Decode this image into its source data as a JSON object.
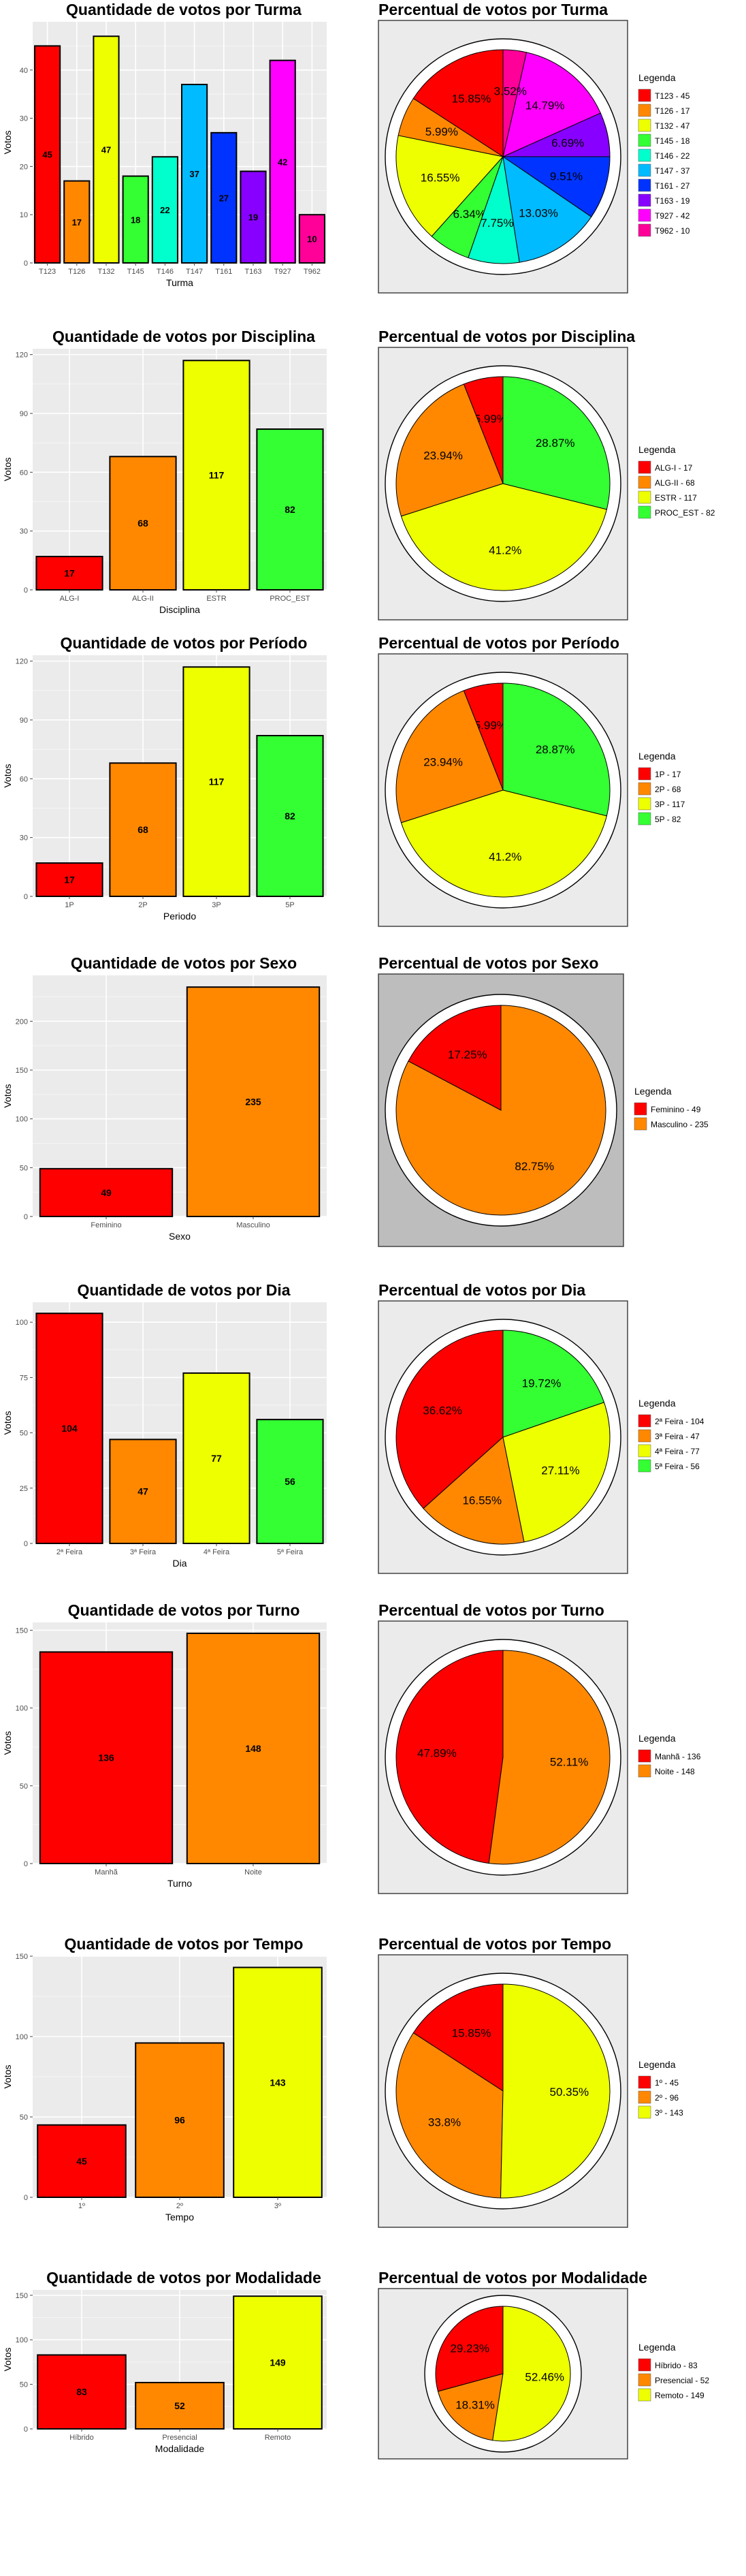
{
  "chart_data": [
    {
      "type": "bar",
      "title": "Quantidade de votos por Turma",
      "xlabel": "Turma",
      "ylabel": "Votos",
      "categories": [
        "T123",
        "T126",
        "T132",
        "T145",
        "T146",
        "T147",
        "T161",
        "T163",
        "T927",
        "T962"
      ],
      "values": [
        45,
        17,
        47,
        18,
        22,
        37,
        27,
        19,
        42,
        10
      ],
      "colors": [
        "#ff0000",
        "#ff8800",
        "#eeff00",
        "#33ff33",
        "#00ffcc",
        "#00bbff",
        "#0033ff",
        "#8800ff",
        "#ff00ff",
        "#ff0099"
      ],
      "ylim": [
        0,
        50
      ],
      "yticks": [
        0,
        10,
        20,
        30,
        40
      ],
      "grid": true
    },
    {
      "type": "pie",
      "title": "Percentual de votos por Turma",
      "legend_title": "Legenda",
      "legend": [
        "T123 - 45",
        "T126 - 17",
        "T132 - 47",
        "T145 - 18",
        "T146 - 22",
        "T147 - 37",
        "T161 - 27",
        "T163 - 19",
        "T927 - 42",
        "T962 - 10"
      ],
      "values": [
        45,
        17,
        47,
        18,
        22,
        37,
        27,
        19,
        42,
        10
      ],
      "labels": [
        "15.85%",
        "5.99%",
        "16.55%",
        "6.34%",
        "7.75%",
        "13.03%",
        "9.51%",
        "6.69%",
        "14.79%",
        "3.52%"
      ],
      "colors": [
        "#ff0000",
        "#ff8800",
        "#eeff00",
        "#33ff33",
        "#00ffcc",
        "#00bbff",
        "#0033ff",
        "#8800ff",
        "#ff00ff",
        "#ff0099"
      ],
      "legend_placement": "right"
    },
    {
      "type": "bar",
      "title": "Quantidade de votos por Disciplina",
      "xlabel": "Disciplina",
      "ylabel": "Votos",
      "categories": [
        "ALG-I",
        "ALG-II",
        "ESTR",
        "PROC_EST"
      ],
      "values": [
        17,
        68,
        117,
        82
      ],
      "colors": [
        "#ff0000",
        "#ff8800",
        "#eeff00",
        "#33ff33"
      ],
      "ylim": [
        0,
        123
      ],
      "yticks": [
        0,
        30,
        60,
        90,
        120
      ],
      "grid": true
    },
    {
      "type": "pie",
      "title": "Percentual de votos por Disciplina",
      "legend_title": "Legenda",
      "legend": [
        "ALG-I - 17",
        "ALG-II - 68",
        "ESTR - 117",
        "PROC_EST - 82"
      ],
      "values": [
        17,
        68,
        117,
        82
      ],
      "labels": [
        "5.99%",
        "23.94%",
        "41.2%",
        "28.87%"
      ],
      "colors": [
        "#ff0000",
        "#ff8800",
        "#eeff00",
        "#33ff33"
      ],
      "legend_placement": "right"
    },
    {
      "type": "bar",
      "title": "Quantidade de votos por Período",
      "xlabel": "Periodo",
      "ylabel": "Votos",
      "categories": [
        "1P",
        "2P",
        "3P",
        "5P"
      ],
      "values": [
        17,
        68,
        117,
        82
      ],
      "colors": [
        "#ff0000",
        "#ff8800",
        "#eeff00",
        "#33ff33"
      ],
      "ylim": [
        0,
        123
      ],
      "yticks": [
        0,
        30,
        60,
        90,
        120
      ],
      "grid": true
    },
    {
      "type": "pie",
      "title": "Percentual de votos por Período",
      "legend_title": "Legenda",
      "legend": [
        "1P - 17",
        "2P - 68",
        "3P - 117",
        "5P - 82"
      ],
      "values": [
        17,
        68,
        117,
        82
      ],
      "labels": [
        "5.99%",
        "23.94%",
        "41.2%",
        "28.87%"
      ],
      "colors": [
        "#ff0000",
        "#ff8800",
        "#eeff00",
        "#33ff33"
      ],
      "legend_placement": "right"
    },
    {
      "type": "bar",
      "title": "Quantidade de votos por Sexo",
      "xlabel": "Sexo",
      "ylabel": "Votos",
      "categories": [
        "Feminino",
        "Masculino"
      ],
      "values": [
        49,
        235
      ],
      "colors": [
        "#ff0000",
        "#ff8800"
      ],
      "ylim": [
        0,
        247
      ],
      "yticks": [
        0,
        50,
        100,
        150,
        200
      ],
      "grid": true
    },
    {
      "type": "pie",
      "title": "Percentual de votos por Sexo",
      "legend_title": "Legenda",
      "legend": [
        "Feminino - 49",
        "Masculino - 235"
      ],
      "values": [
        49,
        235
      ],
      "labels": [
        "17.25%",
        "82.75%"
      ],
      "colors": [
        "#ff0000",
        "#ff8800"
      ],
      "legend_placement": "right"
    },
    {
      "type": "bar",
      "title": "Quantidade de votos por Dia",
      "xlabel": "Dia",
      "ylabel": "Votos",
      "categories": [
        "2ª Feira",
        "3ª Feira",
        "4ª Feira",
        "5ª Feira"
      ],
      "values": [
        104,
        47,
        77,
        56
      ],
      "colors": [
        "#ff0000",
        "#ff8800",
        "#eeff00",
        "#33ff33"
      ],
      "ylim": [
        0,
        109
      ],
      "yticks": [
        0,
        25,
        50,
        75,
        100
      ],
      "grid": true
    },
    {
      "type": "pie",
      "title": "Percentual de votos por Dia",
      "legend_title": "Legenda",
      "legend": [
        "2ª Feira - 104",
        "3ª Feira - 47",
        "4ª Feira - 77",
        "5ª Feira - 56"
      ],
      "values": [
        104,
        47,
        77,
        56
      ],
      "labels": [
        "36.62%",
        "16.55%",
        "27.11%",
        "19.72%"
      ],
      "colors": [
        "#ff0000",
        "#ff8800",
        "#eeff00",
        "#33ff33"
      ],
      "legend_placement": "right"
    },
    {
      "type": "bar",
      "title": "Quantidade de votos por Turno",
      "xlabel": "Turno",
      "ylabel": "Votos",
      "categories": [
        "Manhã",
        "Noite"
      ],
      "values": [
        136,
        148
      ],
      "colors": [
        "#ff0000",
        "#ff8800"
      ],
      "ylim": [
        0,
        155
      ],
      "yticks": [
        0,
        50,
        100,
        150
      ],
      "grid": true
    },
    {
      "type": "pie",
      "title": "Percentual de votos por Turno",
      "legend_title": "Legenda",
      "legend": [
        "Manhã - 136",
        "Noite - 148"
      ],
      "values": [
        136,
        148
      ],
      "labels": [
        "47.89%",
        "52.11%"
      ],
      "colors": [
        "#ff0000",
        "#ff8800"
      ],
      "legend_placement": "right"
    },
    {
      "type": "bar",
      "title": "Quantidade de votos por Tempo",
      "xlabel": "Tempo",
      "ylabel": "Votos",
      "categories": [
        "1º",
        "2º",
        "3º"
      ],
      "values": [
        45,
        96,
        143
      ],
      "colors": [
        "#ff0000",
        "#ff8800",
        "#eeff00"
      ],
      "ylim": [
        0,
        150
      ],
      "yticks": [
        0,
        50,
        100,
        150
      ],
      "grid": true
    },
    {
      "type": "pie",
      "title": "Percentual de votos por Tempo",
      "legend_title": "Legenda",
      "legend": [
        "1º - 45",
        "2º - 96",
        "3º - 143"
      ],
      "values": [
        45,
        96,
        143
      ],
      "labels": [
        "15.85%",
        "33.8%",
        "50.35%"
      ],
      "colors": [
        "#ff0000",
        "#ff8800",
        "#eeff00"
      ],
      "legend_placement": "right"
    },
    {
      "type": "bar",
      "title": "Quantidade de votos por Modalidade",
      "xlabel": "Modalidade",
      "ylabel": "Votos",
      "categories": [
        "Híbrido",
        "Presencial",
        "Remoto"
      ],
      "values": [
        83,
        52,
        149
      ],
      "colors": [
        "#ff0000",
        "#ff8800",
        "#eeff00"
      ],
      "ylim": [
        0,
        156
      ],
      "yticks": [
        0,
        50,
        100,
        150
      ],
      "grid": true
    },
    {
      "type": "pie",
      "title": "Percentual de votos por Modalidade",
      "legend_title": "Legenda",
      "legend": [
        "Híbrido - 83",
        "Presencial - 52",
        "Remoto - 149"
      ],
      "values": [
        83,
        52,
        149
      ],
      "labels": [
        "29.23%",
        "18.31%",
        "52.46%"
      ],
      "colors": [
        "#ff0000",
        "#ff8800",
        "#eeff00"
      ],
      "legend_placement": "right"
    }
  ]
}
